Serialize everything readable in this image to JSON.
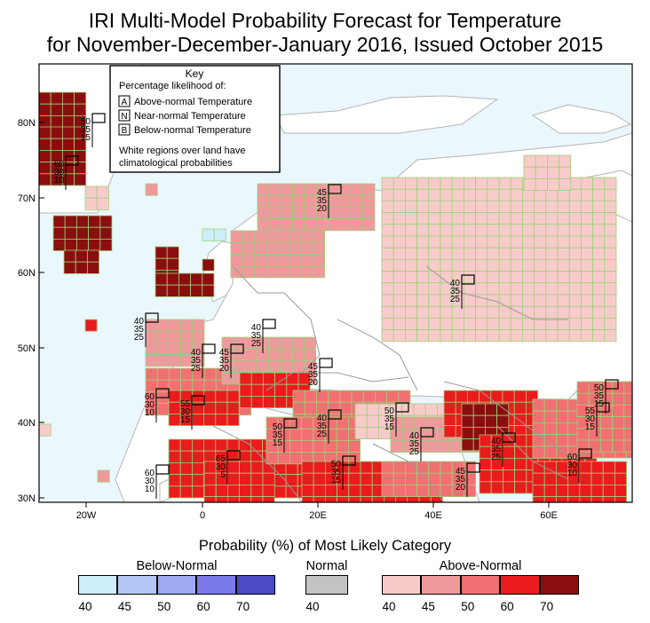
{
  "title_line1": "IRI Multi-Model Probability Forecast for Temperature",
  "title_line2": "for November-December-January 2016, Issued October 2015",
  "key": {
    "heading": "Key",
    "subheading": "Percentage likelihood of:",
    "items": [
      {
        "letter": "A",
        "label": "Above-normal Temperature"
      },
      {
        "letter": "N",
        "label": "Near-normal Temperature"
      },
      {
        "letter": "B",
        "label": "Below-normal Temperature"
      }
    ],
    "note_line1": "White regions over land have",
    "note_line2": "climatological probabilities"
  },
  "lat_labels": [
    "80N",
    "70N",
    "60N",
    "50N",
    "40N",
    "30N"
  ],
  "lon_labels": [
    "20W",
    "0",
    "20E",
    "40E",
    "60E"
  ],
  "forecast_boxes": [
    [
      "50",
      "35",
      "15"
    ],
    [
      "60",
      "30",
      "10"
    ],
    [
      "45",
      "35",
      "20"
    ],
    [
      "40",
      "35",
      "25"
    ],
    [
      "40",
      "35",
      "25"
    ],
    [
      "40",
      "35",
      "25"
    ],
    [
      "40",
      "35",
      "25"
    ],
    [
      "45",
      "35",
      "20"
    ],
    [
      "60",
      "30",
      "10"
    ],
    [
      "55",
      "30",
      "15"
    ],
    [
      "45",
      "35",
      "20"
    ],
    [
      "50",
      "35",
      "15"
    ],
    [
      "40",
      "35",
      "25"
    ],
    [
      "50",
      "35",
      "15"
    ],
    [
      "40",
      "35",
      "25"
    ],
    [
      "60",
      "30",
      "10"
    ],
    [
      "65",
      "30",
      "5"
    ],
    [
      "50",
      "35",
      "15"
    ],
    [
      "45",
      "35",
      "20"
    ],
    [
      "40",
      "35",
      "25"
    ],
    [
      "50",
      "35",
      "15"
    ],
    [
      "55",
      "30",
      "15"
    ],
    [
      "60",
      "30",
      "10"
    ]
  ],
  "legend": {
    "title": "Probability (%) of Most Likely Category",
    "below_label": "Below-Normal",
    "normal_label": "Normal",
    "above_label": "Above-Normal",
    "below_ticks": [
      "40",
      "45",
      "50",
      "60",
      "70"
    ],
    "normal_ticks": [
      "40"
    ],
    "above_ticks": [
      "40",
      "45",
      "50",
      "60",
      "70"
    ],
    "below_colors": [
      "#cdeefa",
      "#b3c8f5",
      "#9da9f2",
      "#7c79ec",
      "#4b4bc4"
    ],
    "normal_color": "#c3c3c3",
    "above_colors": [
      "#f8cbcb",
      "#ee9a9d",
      "#f27071",
      "#ea1b1c",
      "#8b0e0f"
    ]
  },
  "colors": {
    "ocean": "#eaf7fc",
    "grid_line": "#9ecf7a",
    "border_line": "#9a9a9a"
  }
}
